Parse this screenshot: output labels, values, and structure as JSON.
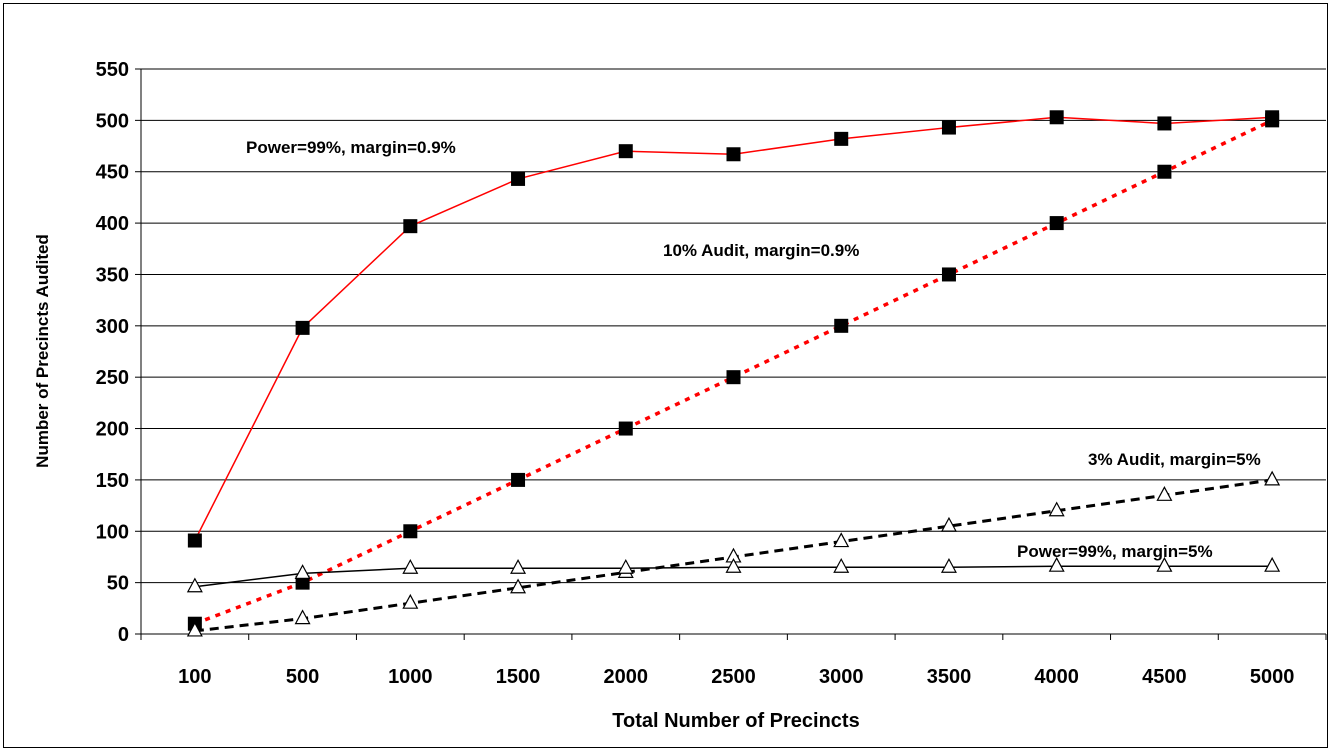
{
  "chart_data": {
    "type": "line",
    "title": "",
    "xlabel": "Total Number of Precincts",
    "ylabel": "Number of Precincts Audited",
    "ylim": [
      0,
      550
    ],
    "y_ticks": [
      "0",
      "50",
      "100",
      "150",
      "200",
      "250",
      "300",
      "350",
      "400",
      "450",
      "500",
      "550"
    ],
    "categories": [
      "100",
      "500",
      "1000",
      "1500",
      "2000",
      "2500",
      "3000",
      "3500",
      "4000",
      "4500",
      "5000"
    ],
    "grid": "horizontal",
    "legend": "none",
    "series": [
      {
        "name": "Power=99%, margin=0.9%",
        "color": "#ff0000",
        "line": "solid",
        "marker": "filled-square",
        "values": [
          91,
          298,
          397,
          443,
          470,
          467,
          482,
          493,
          503,
          497,
          503
        ]
      },
      {
        "name": "10% Audit, margin=0.9%",
        "color": "#ff0000",
        "line": "dotted",
        "marker": "filled-square",
        "values": [
          10,
          50,
          100,
          150,
          200,
          250,
          300,
          350,
          400,
          450,
          500
        ]
      },
      {
        "name": "3% Audit, margin=5%",
        "color": "#000000",
        "line": "dashed",
        "marker": "open-triangle",
        "values": [
          3,
          15,
          30,
          45,
          60,
          75,
          90,
          105,
          120,
          135,
          150
        ]
      },
      {
        "name": "Power=99%, margin=5%",
        "color": "#000000",
        "line": "solid",
        "marker": "open-triangle",
        "values": [
          46,
          59,
          64,
          64,
          64,
          65,
          65,
          65,
          66,
          66,
          66
        ]
      }
    ]
  }
}
